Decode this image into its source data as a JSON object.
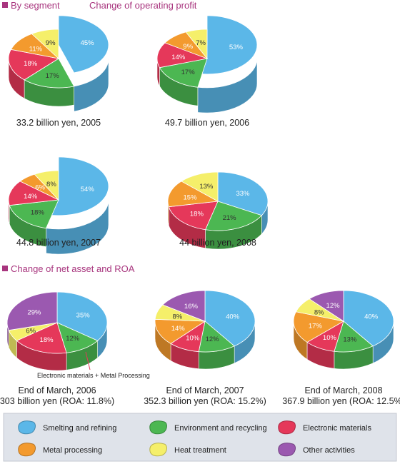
{
  "section1": {
    "title": "By segment",
    "subtitle": "Change of operating profit"
  },
  "section2": {
    "title": "Change of net asset and ROA"
  },
  "note": "Electronic materials + Metal Processing",
  "legend": [
    {
      "key": "smelting",
      "label": "Smelting and refining",
      "color": "#5bb7e8"
    },
    {
      "key": "environment",
      "label": "Environment and recycling",
      "color": "#4cb752"
    },
    {
      "key": "electronic",
      "label": "Electronic materials",
      "color": "#e5385a"
    },
    {
      "key": "metal",
      "label": "Metal processing",
      "color": "#f39a2e"
    },
    {
      "key": "heat",
      "label": "Heat treatment",
      "color": "#f5ef6a"
    },
    {
      "key": "other",
      "label": "Other activities",
      "color": "#9b59b0"
    }
  ],
  "chart_data": [
    {
      "type": "pie",
      "caption": "33.2 billion yen, 2005",
      "slices": [
        {
          "key": "smelting",
          "label": "45%",
          "value": 45
        },
        {
          "key": "environment",
          "label": "17%",
          "value": 17
        },
        {
          "key": "electronic",
          "label": "18%",
          "value": 18
        },
        {
          "key": "metal",
          "label": "11%",
          "value": 11
        },
        {
          "key": "heat",
          "label": "9%",
          "value": 9
        }
      ]
    },
    {
      "type": "pie",
      "caption": "49.7 billion yen, 2006",
      "slices": [
        {
          "key": "smelting",
          "label": "53%",
          "value": 53
        },
        {
          "key": "environment",
          "label": "17%",
          "value": 17
        },
        {
          "key": "electronic",
          "label": "14%",
          "value": 14
        },
        {
          "key": "metal",
          "label": "9%",
          "value": 9
        },
        {
          "key": "heat",
          "label": "7%",
          "value": 7
        }
      ]
    },
    {
      "type": "pie",
      "caption": "44.8 billion yen, 2007",
      "slices": [
        {
          "key": "smelting",
          "label": "54%",
          "value": 54
        },
        {
          "key": "environment",
          "label": "18%",
          "value": 18
        },
        {
          "key": "electronic",
          "label": "14%",
          "value": 14
        },
        {
          "key": "metal",
          "label": "6%",
          "value": 6
        },
        {
          "key": "heat",
          "label": "8%",
          "value": 8
        }
      ]
    },
    {
      "type": "pie",
      "caption": "44 billion yen, 2008",
      "slices": [
        {
          "key": "smelting",
          "label": "33%",
          "value": 33
        },
        {
          "key": "environment",
          "label": "21%",
          "value": 21
        },
        {
          "key": "electronic",
          "label": "18%",
          "value": 18
        },
        {
          "key": "metal",
          "label": "15%",
          "value": 15
        },
        {
          "key": "heat",
          "label": "13%",
          "value": 13
        }
      ]
    },
    {
      "type": "pie",
      "caption": [
        "End of March, 2006",
        "303 billion yen (ROA: 11.8%)"
      ],
      "slices": [
        {
          "key": "smelting",
          "label": "35%",
          "value": 35
        },
        {
          "key": "environment",
          "label": "12%",
          "value": 12
        },
        {
          "key": "electronic",
          "label": "18%",
          "value": 18
        },
        {
          "key": "heat",
          "label": "6%",
          "value": 6
        },
        {
          "key": "other",
          "label": "29%",
          "value": 29
        }
      ]
    },
    {
      "type": "pie",
      "caption": [
        "End of March, 2007",
        "352.3 billion yen (ROA: 15.2%)"
      ],
      "slices": [
        {
          "key": "smelting",
          "label": "40%",
          "value": 40
        },
        {
          "key": "environment",
          "label": "12%",
          "value": 12
        },
        {
          "key": "electronic",
          "label": "10%",
          "value": 10
        },
        {
          "key": "metal",
          "label": "14%",
          "value": 14
        },
        {
          "key": "heat",
          "label": "8%",
          "value": 8
        },
        {
          "key": "other",
          "label": "16%",
          "value": 16
        }
      ]
    },
    {
      "type": "pie",
      "caption": [
        "End of March, 2008",
        "367.9 billion yen (ROA: 12.5%)"
      ],
      "slices": [
        {
          "key": "smelting",
          "label": "40%",
          "value": 40
        },
        {
          "key": "environment",
          "label": "13%",
          "value": 13
        },
        {
          "key": "electronic",
          "label": "10%",
          "value": 10
        },
        {
          "key": "metal",
          "label": "17%",
          "value": 17
        },
        {
          "key": "heat",
          "label": "8%",
          "value": 8
        },
        {
          "key": "other",
          "label": "12%",
          "value": 12
        }
      ]
    }
  ]
}
